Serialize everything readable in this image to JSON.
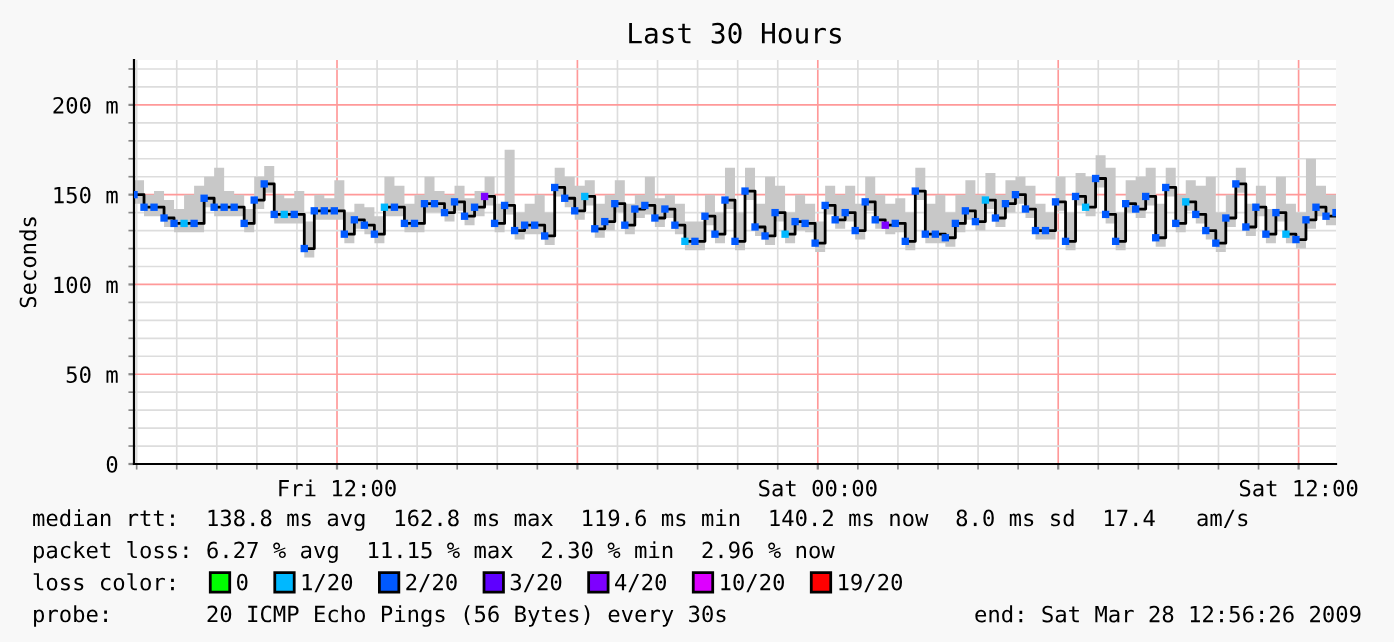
{
  "chart_data": {
    "type": "step",
    "title": "Last 30 Hours",
    "ylabel": "Seconds",
    "x": [
      "2009-03-27T06:56",
      "2009-03-27T07:11",
      "2009-03-27T07:26",
      "2009-03-27T07:41",
      "2009-03-27T07:56",
      "2009-03-27T08:11",
      "2009-03-27T08:26",
      "2009-03-27T08:41",
      "2009-03-27T08:56",
      "2009-03-27T09:11",
      "2009-03-27T09:26",
      "2009-03-27T09:41",
      "2009-03-27T09:56",
      "2009-03-27T10:11",
      "2009-03-27T10:26",
      "2009-03-27T10:41",
      "2009-03-27T10:56",
      "2009-03-27T11:11",
      "2009-03-27T11:26",
      "2009-03-27T11:41",
      "2009-03-27T11:56",
      "2009-03-27T12:11",
      "2009-03-27T12:26",
      "2009-03-27T12:41",
      "2009-03-27T12:56",
      "2009-03-27T13:11",
      "2009-03-27T13:26",
      "2009-03-27T13:41",
      "2009-03-27T13:56",
      "2009-03-27T14:11",
      "2009-03-27T14:26",
      "2009-03-27T14:41",
      "2009-03-27T14:56",
      "2009-03-27T15:11",
      "2009-03-27T15:26",
      "2009-03-27T15:41",
      "2009-03-27T15:56",
      "2009-03-27T16:11",
      "2009-03-27T16:26",
      "2009-03-27T16:41",
      "2009-03-27T16:56",
      "2009-03-27T17:11",
      "2009-03-27T17:26",
      "2009-03-27T17:41",
      "2009-03-27T17:56",
      "2009-03-27T18:11",
      "2009-03-27T18:26",
      "2009-03-27T18:41",
      "2009-03-27T18:56",
      "2009-03-27T19:11",
      "2009-03-27T19:26",
      "2009-03-27T19:41",
      "2009-03-27T19:56",
      "2009-03-27T20:11",
      "2009-03-27T20:26",
      "2009-03-27T20:41",
      "2009-03-27T20:56",
      "2009-03-27T21:11",
      "2009-03-27T21:26",
      "2009-03-27T21:41",
      "2009-03-27T21:56",
      "2009-03-27T22:11",
      "2009-03-27T22:26",
      "2009-03-27T22:41",
      "2009-03-27T22:56",
      "2009-03-27T23:11",
      "2009-03-27T23:26",
      "2009-03-27T23:41",
      "2009-03-27T23:56",
      "2009-03-28T00:11",
      "2009-03-28T00:26",
      "2009-03-28T00:41",
      "2009-03-28T00:56",
      "2009-03-28T01:11",
      "2009-03-28T01:26",
      "2009-03-28T01:41",
      "2009-03-28T01:56",
      "2009-03-28T02:11",
      "2009-03-28T02:26",
      "2009-03-28T02:41",
      "2009-03-28T02:56",
      "2009-03-28T03:11",
      "2009-03-28T03:26",
      "2009-03-28T03:41",
      "2009-03-28T03:56",
      "2009-03-28T04:11",
      "2009-03-28T04:26",
      "2009-03-28T04:41",
      "2009-03-28T04:56",
      "2009-03-28T05:11",
      "2009-03-28T05:26",
      "2009-03-28T05:41",
      "2009-03-28T05:56",
      "2009-03-28T06:11",
      "2009-03-28T06:26",
      "2009-03-28T06:41",
      "2009-03-28T06:56",
      "2009-03-28T07:11",
      "2009-03-28T07:26",
      "2009-03-28T07:41",
      "2009-03-28T07:56",
      "2009-03-28T08:11",
      "2009-03-28T08:26",
      "2009-03-28T08:41",
      "2009-03-28T08:56",
      "2009-03-28T09:11",
      "2009-03-28T09:26",
      "2009-03-28T09:41",
      "2009-03-28T09:56",
      "2009-03-28T10:11",
      "2009-03-28T10:26",
      "2009-03-28T10:41",
      "2009-03-28T10:56",
      "2009-03-28T11:11",
      "2009-03-28T11:26",
      "2009-03-28T11:41",
      "2009-03-28T11:56",
      "2009-03-28T12:11",
      "2009-03-28T12:26",
      "2009-03-28T12:41",
      "2009-03-28T12:56"
    ],
    "series": [
      {
        "color": "#000000",
        "values": [
          150,
          143,
          143,
          137,
          134,
          134,
          134,
          148,
          143,
          143,
          143,
          134,
          147,
          156,
          139,
          139,
          139,
          120,
          141,
          141,
          141,
          128,
          136,
          133,
          128,
          143,
          143,
          134,
          134,
          145,
          145,
          140,
          146,
          138,
          143,
          149,
          134,
          144,
          130,
          133,
          133,
          127,
          154,
          148,
          141,
          149,
          131,
          135,
          145,
          133,
          142,
          144,
          137,
          142,
          133,
          124,
          124,
          138,
          128,
          147,
          124,
          152,
          132,
          127,
          140,
          128,
          135,
          134,
          123,
          144,
          136,
          140,
          130,
          146,
          136,
          133,
          134,
          124,
          152,
          128,
          128,
          126,
          134,
          141,
          135,
          147,
          137,
          145,
          150,
          142,
          130,
          130,
          146,
          124,
          149,
          143,
          159,
          139,
          124,
          145,
          142,
          149,
          126,
          154,
          134,
          146,
          139,
          130,
          123,
          137,
          156,
          132,
          143,
          128,
          140,
          128,
          125,
          136,
          143,
          138,
          140
        ],
        "upper": [
          158,
          150,
          152,
          147,
          142,
          150,
          155,
          160,
          165,
          152,
          150,
          142,
          160,
          166,
          150,
          148,
          152,
          135,
          150,
          148,
          158,
          140,
          145,
          143,
          138,
          160,
          155,
          145,
          150,
          160,
          152,
          150,
          155,
          148,
          152,
          160,
          145,
          175,
          140,
          145,
          150,
          140,
          165,
          160,
          155,
          158,
          145,
          150,
          158,
          145,
          150,
          160,
          148,
          150,
          145,
          135,
          135,
          150,
          140,
          165,
          140,
          165,
          145,
          160,
          155,
          140,
          150,
          145,
          135,
          155,
          150,
          155,
          145,
          160,
          150,
          145,
          148,
          140,
          165,
          145,
          150,
          140,
          150,
          158,
          150,
          162,
          150,
          158,
          160,
          155,
          145,
          140,
          160,
          140,
          162,
          160,
          172,
          165,
          140,
          158,
          160,
          165,
          145,
          165,
          150,
          158,
          155,
          160,
          140,
          150,
          165,
          145,
          155,
          142,
          160,
          145,
          140,
          170,
          155,
          150,
          150
        ],
        "lower": [
          145,
          138,
          138,
          132,
          129,
          129,
          129,
          143,
          138,
          138,
          138,
          129,
          142,
          151,
          134,
          134,
          134,
          115,
          136,
          136,
          136,
          123,
          131,
          128,
          123,
          138,
          138,
          129,
          129,
          140,
          140,
          135,
          141,
          133,
          138,
          144,
          129,
          139,
          125,
          128,
          128,
          122,
          149,
          143,
          136,
          144,
          126,
          130,
          140,
          128,
          137,
          139,
          132,
          137,
          128,
          119,
          119,
          133,
          123,
          142,
          119,
          147,
          127,
          122,
          135,
          123,
          130,
          129,
          118,
          139,
          131,
          135,
          125,
          141,
          131,
          128,
          129,
          119,
          147,
          123,
          123,
          121,
          129,
          136,
          130,
          142,
          132,
          140,
          145,
          137,
          125,
          125,
          141,
          119,
          144,
          138,
          154,
          134,
          119,
          140,
          137,
          144,
          121,
          149,
          129,
          141,
          134,
          125,
          118,
          132,
          151,
          127,
          138,
          123,
          135,
          123,
          120,
          131,
          138,
          133,
          135
        ]
      },
      {
        "type": "scatter",
        "marker": "square",
        "name": "0",
        "color": "#00ff00",
        "values": [
          null,
          null,
          null,
          null,
          null,
          null,
          null,
          null,
          null,
          null,
          null,
          null,
          null,
          null,
          null,
          null,
          null,
          null,
          null,
          null,
          null,
          null,
          null,
          null,
          null,
          null,
          null,
          null,
          null,
          null,
          null,
          null,
          null,
          null,
          null,
          null,
          null,
          null,
          null,
          null,
          null,
          null,
          null,
          null,
          null,
          null,
          null,
          null,
          null,
          null,
          null,
          null,
          null,
          null,
          null,
          null,
          null,
          null,
          null,
          null,
          null,
          null,
          null,
          null,
          null,
          null,
          null,
          null,
          null,
          null,
          null,
          null,
          null,
          null,
          null,
          null,
          null,
          null,
          null,
          null,
          null,
          null,
          null,
          null,
          null,
          null,
          null,
          null,
          null,
          null,
          null,
          null,
          null,
          null,
          null,
          null,
          null,
          null,
          null,
          null,
          null,
          null,
          null,
          null,
          null,
          null,
          null,
          null,
          null,
          null,
          null,
          null,
          null,
          null,
          null,
          null,
          null,
          null,
          null,
          null,
          null
        ]
      },
      {
        "type": "scatter",
        "marker": "square",
        "name": "1/20",
        "color": "#00b8ff",
        "values": [
          null,
          null,
          null,
          null,
          null,
          134,
          null,
          null,
          null,
          null,
          null,
          null,
          null,
          null,
          null,
          139,
          null,
          null,
          null,
          null,
          null,
          null,
          null,
          null,
          null,
          143,
          null,
          null,
          null,
          null,
          null,
          null,
          null,
          null,
          null,
          null,
          null,
          null,
          null,
          null,
          null,
          null,
          null,
          null,
          null,
          149,
          null,
          null,
          null,
          null,
          null,
          null,
          null,
          null,
          null,
          124,
          null,
          null,
          null,
          null,
          null,
          null,
          null,
          null,
          null,
          128,
          null,
          null,
          null,
          null,
          null,
          null,
          null,
          null,
          null,
          null,
          null,
          null,
          null,
          null,
          null,
          null,
          null,
          null,
          null,
          147,
          null,
          null,
          null,
          null,
          null,
          null,
          null,
          null,
          null,
          143,
          null,
          null,
          null,
          null,
          null,
          null,
          null,
          null,
          null,
          146,
          null,
          null,
          null,
          null,
          null,
          null,
          null,
          null,
          null,
          128,
          null,
          null,
          null,
          null,
          null
        ]
      },
      {
        "type": "scatter",
        "marker": "square",
        "name": "2/20",
        "color": "#0059ff",
        "values": [
          150,
          143,
          143,
          137,
          134,
          null,
          134,
          148,
          143,
          143,
          143,
          134,
          147,
          156,
          139,
          null,
          139,
          120,
          141,
          141,
          141,
          128,
          136,
          133,
          128,
          null,
          143,
          134,
          134,
          145,
          145,
          140,
          146,
          138,
          143,
          null,
          134,
          144,
          130,
          133,
          133,
          127,
          154,
          148,
          141,
          null,
          131,
          135,
          145,
          133,
          142,
          144,
          137,
          142,
          133,
          null,
          124,
          138,
          128,
          147,
          124,
          152,
          132,
          127,
          140,
          null,
          135,
          134,
          123,
          144,
          136,
          140,
          130,
          146,
          136,
          null,
          134,
          124,
          152,
          128,
          128,
          126,
          134,
          141,
          135,
          null,
          137,
          145,
          150,
          142,
          130,
          130,
          146,
          124,
          149,
          null,
          159,
          139,
          124,
          145,
          142,
          149,
          126,
          154,
          134,
          null,
          139,
          130,
          123,
          137,
          156,
          132,
          143,
          128,
          140,
          null,
          125,
          136,
          143,
          138,
          140
        ]
      },
      {
        "type": "scatter",
        "marker": "square",
        "name": "3/20",
        "color": "#5e00ff",
        "values": [
          null,
          null,
          null,
          null,
          null,
          null,
          null,
          null,
          null,
          null,
          null,
          null,
          null,
          null,
          null,
          null,
          null,
          null,
          null,
          null,
          null,
          null,
          null,
          null,
          null,
          null,
          null,
          null,
          null,
          null,
          null,
          null,
          null,
          null,
          null,
          null,
          null,
          null,
          null,
          null,
          null,
          null,
          null,
          null,
          null,
          null,
          null,
          null,
          null,
          null,
          null,
          null,
          null,
          null,
          null,
          null,
          null,
          null,
          null,
          null,
          null,
          null,
          null,
          null,
          null,
          null,
          null,
          null,
          null,
          null,
          null,
          null,
          null,
          null,
          null,
          null,
          null,
          null,
          null,
          null,
          null,
          null,
          null,
          null,
          null,
          null,
          null,
          null,
          null,
          null,
          null,
          null,
          null,
          null,
          null,
          null,
          null,
          null,
          null,
          null,
          null,
          null,
          null,
          null,
          null,
          null,
          null,
          null,
          null,
          null,
          null,
          null,
          null,
          null,
          null,
          null,
          null,
          null,
          null,
          null,
          null
        ]
      },
      {
        "type": "scatter",
        "marker": "square",
        "name": "4/20",
        "color": "#7e00ff",
        "values": [
          null,
          null,
          null,
          null,
          null,
          null,
          null,
          null,
          null,
          null,
          null,
          null,
          null,
          null,
          null,
          null,
          null,
          null,
          null,
          null,
          null,
          null,
          null,
          null,
          null,
          null,
          null,
          null,
          null,
          null,
          null,
          null,
          null,
          null,
          null,
          149,
          null,
          null,
          null,
          null,
          null,
          null,
          null,
          null,
          null,
          null,
          null,
          null,
          null,
          null,
          null,
          null,
          null,
          null,
          null,
          null,
          null,
          null,
          null,
          null,
          null,
          null,
          null,
          null,
          null,
          null,
          null,
          null,
          null,
          null,
          null,
          null,
          null,
          null,
          null,
          133,
          null,
          null,
          null,
          null,
          null,
          null,
          null,
          null,
          null,
          null,
          null,
          null,
          null,
          null,
          null,
          null,
          null,
          null,
          null,
          null,
          null,
          null,
          null,
          null,
          null,
          null,
          null,
          null,
          null,
          null,
          null,
          null,
          null,
          null,
          null,
          null,
          null,
          null,
          null,
          null,
          null,
          null,
          null,
          null,
          null
        ]
      },
      {
        "type": "scatter",
        "marker": "square",
        "name": "10/20",
        "color": "#dd00ff",
        "values": [
          null,
          null,
          null,
          null,
          null,
          null,
          null,
          null,
          null,
          null,
          null,
          null,
          null,
          null,
          null,
          null,
          null,
          null,
          null,
          null,
          null,
          null,
          null,
          null,
          null,
          null,
          null,
          null,
          null,
          null,
          null,
          null,
          null,
          null,
          null,
          null,
          null,
          null,
          null,
          null,
          null,
          null,
          null,
          null,
          null,
          null,
          null,
          null,
          null,
          null,
          null,
          null,
          null,
          null,
          null,
          null,
          null,
          null,
          null,
          null,
          null,
          null,
          null,
          null,
          null,
          null,
          null,
          null,
          null,
          null,
          null,
          null,
          null,
          null,
          null,
          null,
          null,
          null,
          null,
          null,
          null,
          null,
          null,
          null,
          null,
          null,
          null,
          null,
          null,
          null,
          null,
          null,
          null,
          null,
          null,
          null,
          null,
          null,
          null,
          null,
          null,
          null,
          null,
          null,
          null,
          null,
          null,
          null,
          null,
          null,
          null,
          null,
          null,
          null,
          null,
          null,
          null,
          null,
          null,
          null,
          null
        ]
      },
      {
        "type": "scatter",
        "marker": "square",
        "name": "19/20",
        "color": "#ff0000",
        "values": [
          null,
          null,
          null,
          null,
          null,
          null,
          null,
          null,
          null,
          null,
          null,
          null,
          null,
          null,
          null,
          null,
          null,
          null,
          null,
          null,
          null,
          null,
          null,
          null,
          null,
          null,
          null,
          null,
          null,
          null,
          null,
          null,
          null,
          null,
          null,
          null,
          null,
          null,
          null,
          null,
          null,
          null,
          null,
          null,
          null,
          null,
          null,
          null,
          null,
          null,
          null,
          null,
          null,
          null,
          null,
          null,
          null,
          null,
          null,
          null,
          null,
          null,
          null,
          null,
          null,
          null,
          null,
          null,
          null,
          null,
          null,
          null,
          null,
          null,
          null,
          null,
          null,
          null,
          null,
          null,
          null,
          null,
          null,
          null,
          null,
          null,
          null,
          null,
          null,
          null,
          null,
          null,
          null,
          null,
          null,
          null,
          null,
          null,
          null,
          null,
          null,
          null,
          null,
          null,
          null,
          null,
          null,
          null,
          null,
          null,
          null,
          null,
          null,
          null,
          null,
          null,
          null,
          null,
          null,
          null,
          null
        ]
      }
    ],
    "ylim": [
      0,
      225
    ],
    "yticks": [
      0,
      {
        "value": 50,
        "label": "50 m"
      },
      {
        "value": 100,
        "label": "100 m"
      },
      {
        "value": 150,
        "label": "150 m"
      },
      {
        "value": 200,
        "label": "200 m"
      }
    ],
    "xlim": [
      "2009-03-27T06:56",
      "2009-03-28T12:56"
    ],
    "xticks": [
      {
        "value": "2009-03-27T12:00",
        "label": "Fri 12:00"
      },
      {
        "value": "2009-03-27T18:00",
        "label": null
      },
      {
        "value": "2009-03-28T00:00",
        "label": "Sat 00:00"
      },
      {
        "value": "2009-03-28T06:00",
        "label": null
      },
      {
        "value": "2009-03-28T12:00",
        "label": "Sat 12:00"
      }
    ],
    "grid": true,
    "legend": "bottom",
    "legend_title": "loss color:",
    "annotations": [
      "median rtt:  138.8 ms avg  162.8 ms max  119.6 ms min  140.2 ms now  8.0 ms sd  17.4   am/s",
      "packet loss: 6.27 % avg  11.15 % max  2.30 % min  2.96 % now",
      "probe:       20 ICMP Echo Pings (56 Bytes) every 30s",
      "end: Sat Mar 28 12:56:26 2009"
    ]
  }
}
